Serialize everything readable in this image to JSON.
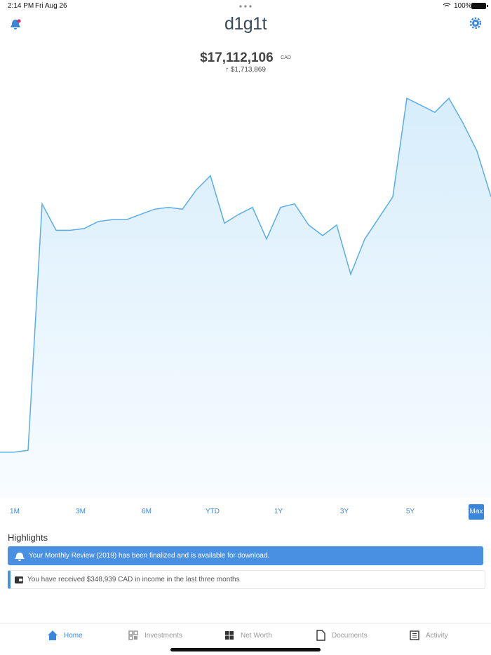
{
  "status_bar": {
    "time": "2:14 PM",
    "date": "Fri Aug 26",
    "battery": "100%"
  },
  "header": {
    "logo": "d1g1t"
  },
  "summary": {
    "value": "$17,112,106",
    "currency": "CAD",
    "change": "$1,713,869"
  },
  "chart": {
    "type": "line",
    "color": "#5aade8",
    "values": [
      2.6,
      2.6,
      2.7,
      16.7,
      15.2,
      15.2,
      15.3,
      15.7,
      15.8,
      15.8,
      16.1,
      16.4,
      16.5,
      16.4,
      17.5,
      18.3,
      15.6,
      16.1,
      16.5,
      14.7,
      16.5,
      16.7,
      15.5,
      14.9,
      15.5,
      12.7,
      14.7,
      15.9,
      17.1,
      22.7,
      22.3,
      21.9,
      22.7,
      21.3,
      19.7,
      17.1
    ],
    "ylim": [
      0,
      23.5
    ]
  },
  "ranges": {
    "items": [
      "1M",
      "3M",
      "6M",
      "YTD",
      "1Y",
      "3Y",
      "5Y",
      "Max"
    ],
    "selected": 7
  },
  "highlights": {
    "title": "Highlights",
    "items": [
      "Your Monthly Review (2019) has been finalized and is available for download.",
      "You have received $348,939 CAD in income in the last three months"
    ]
  },
  "tabs": {
    "items": [
      "Home",
      "Investments",
      "Net Worth",
      "Documents",
      "Activity"
    ],
    "selected": 0
  }
}
